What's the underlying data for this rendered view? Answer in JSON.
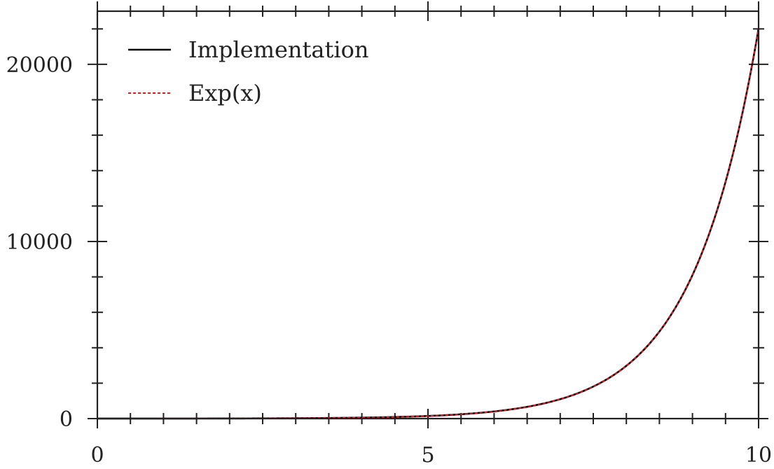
{
  "chart_data": {
    "type": "line",
    "title": "",
    "xlabel": "",
    "ylabel": "",
    "xlim": [
      0,
      10
    ],
    "ylim": [
      0,
      23000
    ],
    "x_ticks": [
      0,
      5,
      10
    ],
    "x_tick_labels": [
      "0",
      "5",
      "10"
    ],
    "x_minor_step": 0.5,
    "y_ticks": [
      0,
      10000,
      20000
    ],
    "y_tick_labels": [
      "0",
      "10000",
      "20000"
    ],
    "y_minor_step": 2000,
    "grid": false,
    "legend_position": "top-left",
    "series": [
      {
        "name": "Implementation",
        "color": "#000000",
        "style": "solid",
        "x": [
          0,
          1,
          2,
          3,
          4,
          5,
          6,
          7,
          7.5,
          8,
          8.5,
          9,
          9.5,
          10
        ],
        "y": [
          1,
          2.7,
          7.4,
          20,
          55,
          148,
          403,
          1097,
          1808,
          2981,
          4915,
          8103,
          13360,
          22026
        ]
      },
      {
        "name": "Exp(x)",
        "color": "#e31a1c",
        "style": "dotted",
        "x": [
          0,
          1,
          2,
          3,
          4,
          5,
          6,
          7,
          7.5,
          8,
          8.5,
          9,
          9.5,
          10
        ],
        "y": [
          1,
          2.7,
          7.4,
          20,
          55,
          148,
          403,
          1097,
          1808,
          2981,
          4915,
          8103,
          13360,
          22026
        ]
      }
    ]
  }
}
